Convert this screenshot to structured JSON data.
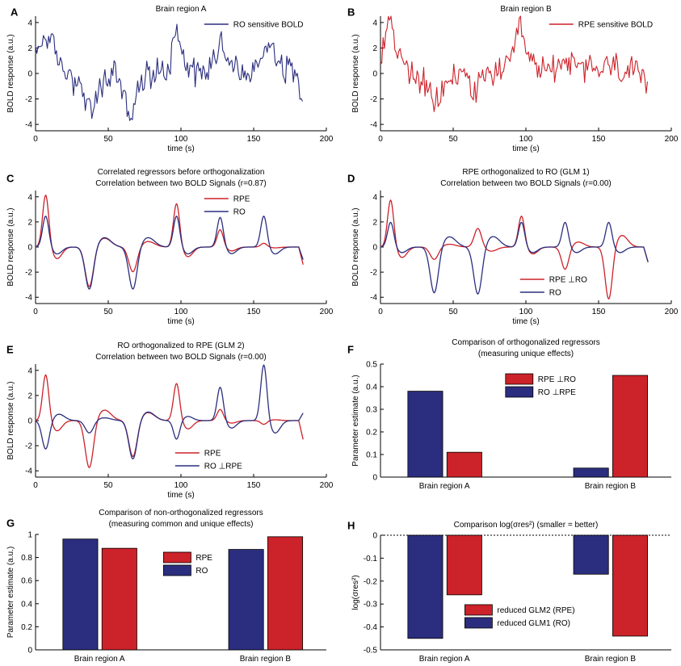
{
  "colors": {
    "ro": "#2b2e7e",
    "rpe": "#cc2229"
  },
  "chart_data": [
    {
      "panel": "A",
      "type": "line",
      "title_lines": [
        "Brain region A"
      ],
      "xlabel": "time (s)",
      "ylabel": "BOLD response (a.u.)",
      "xlim": [
        0,
        200
      ],
      "ylim": [
        -4.5,
        4.5
      ],
      "xticks": [
        0,
        50,
        100,
        150,
        200
      ],
      "yticks": [
        -4,
        -2,
        0,
        2,
        4
      ],
      "legend_position": "top-right",
      "series": [
        {
          "name": "RO sensitive BOLD",
          "color": "ro",
          "noisy": true,
          "x": [
            0,
            4,
            8,
            10,
            14,
            20,
            28,
            34,
            38,
            44,
            50,
            55,
            58,
            62,
            66,
            70,
            76,
            82,
            90,
            94,
            97,
            100,
            104,
            110,
            118,
            124,
            128,
            132,
            138,
            146,
            152,
            156,
            160,
            166,
            172,
            178,
            184
          ],
          "y": [
            1.3,
            2.5,
            3.2,
            2.4,
            1.5,
            0.2,
            -0.6,
            -1.8,
            -3.3,
            -1.3,
            -0.3,
            0.2,
            -0.6,
            -2.4,
            -3.4,
            -1.6,
            -0.2,
            0.1,
            0.3,
            1.6,
            4.3,
            2.2,
            0.8,
            0.2,
            0.1,
            1.6,
            2.8,
            1.2,
            0.3,
            -0.2,
            0.3,
            1.6,
            2.8,
            1.3,
            0.4,
            0.3,
            -1.3
          ]
        }
      ]
    },
    {
      "panel": "B",
      "type": "line",
      "title_lines": [
        "Brain region B"
      ],
      "xlabel": "time (s)",
      "ylabel": "BOLD response (a.u.)",
      "xlim": [
        0,
        200
      ],
      "ylim": [
        -4.5,
        4.5
      ],
      "xticks": [
        0,
        50,
        100,
        150,
        200
      ],
      "yticks": [
        -4,
        -2,
        0,
        2,
        4
      ],
      "legend_position": "top-right",
      "series": [
        {
          "name": "RPE sensitive BOLD",
          "color": "rpe",
          "noisy": true,
          "x": [
            0,
            4,
            7,
            10,
            14,
            20,
            28,
            34,
            37,
            42,
            50,
            58,
            62,
            66,
            70,
            78,
            86,
            92,
            95,
            98,
            102,
            108,
            116,
            124,
            128,
            132,
            140,
            150,
            158,
            166,
            174,
            184
          ],
          "y": [
            1.2,
            3.8,
            4.5,
            2.4,
            0.9,
            0.2,
            -0.5,
            -1.7,
            -2.8,
            -1.5,
            -0.2,
            0.1,
            -0.8,
            -1.6,
            -0.6,
            0.2,
            0.3,
            1.2,
            4.0,
            2.6,
            1.0,
            0.4,
            0.3,
            0.8,
            1.2,
            0.6,
            0.3,
            0.4,
            0.6,
            0.3,
            0.1,
            -1.2
          ]
        }
      ]
    },
    {
      "panel": "C",
      "type": "line",
      "title_lines": [
        "Correlated regressors before orthogonalization",
        "Correlation between two BOLD Signals  (r=0.87)"
      ],
      "xlabel": "time (s)",
      "ylabel": "BOLD response (a.u.)",
      "xlim": [
        0,
        200
      ],
      "ylim": [
        -4.5,
        4.5
      ],
      "xticks": [
        0,
        50,
        100,
        150,
        200
      ],
      "yticks": [
        -4,
        -2,
        0,
        2,
        4
      ],
      "legend_position": "top-right",
      "series": [
        {
          "name": "RPE",
          "color": "rpe",
          "events": [
            [
              7,
              4.2,
              3
            ],
            [
              37,
              -3.2,
              4
            ],
            [
              67,
              -2.0,
              4
            ],
            [
              97,
              3.5,
              3
            ],
            [
              127,
              1.4,
              3
            ],
            [
              157,
              0.3,
              3
            ]
          ],
          "end": -1.4
        },
        {
          "name": "RO",
          "color": "ro",
          "events": [
            [
              7,
              2.5,
              3
            ],
            [
              37,
              -3.4,
              4
            ],
            [
              67,
              -3.4,
              4
            ],
            [
              97,
              2.5,
              3
            ],
            [
              127,
              2.4,
              3
            ],
            [
              157,
              2.5,
              3
            ]
          ],
          "end": -1.0
        }
      ]
    },
    {
      "panel": "D",
      "type": "line",
      "title_lines": [
        "RPE orthogonalized to RO (GLM 1)",
        "Correlation between two BOLD Signals  (r=0.00)"
      ],
      "xlabel": "time (s)",
      "ylabel": "BOLD response (a.u.)",
      "xlim": [
        0,
        200
      ],
      "ylim": [
        -4.5,
        4.5
      ],
      "xticks": [
        0,
        50,
        100,
        150,
        200
      ],
      "yticks": [
        -4,
        -2,
        0,
        2,
        4
      ],
      "legend_position": "bottom-right",
      "series": [
        {
          "name": "RPE  ⊥RO",
          "color": "rpe",
          "events": [
            [
              7,
              3.8,
              3
            ],
            [
              37,
              -1.0,
              4
            ],
            [
              67,
              1.5,
              3.5
            ],
            [
              97,
              2.5,
              3
            ],
            [
              127,
              -1.8,
              3.5
            ],
            [
              157,
              -4.2,
              3.5
            ]
          ],
          "end": -1.2
        },
        {
          "name": "RO",
          "color": "ro",
          "events": [
            [
              7,
              2.0,
              3
            ],
            [
              37,
              -3.7,
              4
            ],
            [
              67,
              -3.8,
              4
            ],
            [
              97,
              2.0,
              3
            ],
            [
              127,
              2.0,
              3
            ],
            [
              157,
              2.0,
              3
            ]
          ],
          "end": -1.2
        }
      ]
    },
    {
      "panel": "E",
      "type": "line",
      "title_lines": [
        "RO orthogonalized to RPE (GLM 2)",
        "Correlation between two BOLD Signals  (r=0.00)"
      ],
      "xlabel": "time (s)",
      "ylabel": "BOLD response (a.u.)",
      "xlim": [
        0,
        200
      ],
      "ylim": [
        -4.5,
        4.5
      ],
      "xticks": [
        0,
        50,
        100,
        150,
        200
      ],
      "yticks": [
        -4,
        -2,
        0,
        2,
        4
      ],
      "legend_position": "bottom-right",
      "series": [
        {
          "name": "RPE",
          "color": "rpe",
          "events": [
            [
              7,
              3.7,
              3
            ],
            [
              37,
              -3.8,
              4
            ],
            [
              67,
              -2.9,
              4
            ],
            [
              97,
              3.0,
              3
            ],
            [
              127,
              0.9,
              3
            ],
            [
              157,
              -0.3,
              3
            ]
          ],
          "end": -1.5
        },
        {
          "name": "RO  ⊥RPE",
          "color": "ro",
          "events": [
            [
              7,
              -2.3,
              3.5
            ],
            [
              37,
              -1.0,
              4
            ],
            [
              67,
              -3.1,
              4
            ],
            [
              97,
              -1.5,
              3
            ],
            [
              127,
              2.7,
              3
            ],
            [
              157,
              4.5,
              3
            ]
          ],
          "end": 0.6
        }
      ]
    },
    {
      "panel": "F",
      "type": "bar",
      "title_lines": [
        "Comparison of orthogonalized regressors",
        "(measuring unique effects)"
      ],
      "xlabel": "",
      "ylabel": "Parameter estimate (a.u.)",
      "categories": [
        "Brain region A",
        "Brain region B"
      ],
      "ylim": [
        0,
        0.5
      ],
      "yticks": [
        0,
        0.1,
        0.2,
        0.3,
        0.4,
        0.5
      ],
      "legend_position": "top-right",
      "legend_order": [
        1,
        0
      ],
      "zero_line": false,
      "series": [
        {
          "name": "RO  ⊥RPE",
          "color": "ro",
          "values": [
            0.38,
            0.04
          ]
        },
        {
          "name": "RPE  ⊥RO",
          "color": "rpe",
          "values": [
            0.11,
            0.45
          ]
        }
      ]
    },
    {
      "panel": "G",
      "type": "bar",
      "title_lines": [
        "Comparison of non-orthogonalized regressors",
        "(measuring common and unique effects)"
      ],
      "xlabel": "",
      "ylabel": "Parameter estimate (a.u.)",
      "categories": [
        "Brain region A",
        "Brain region B"
      ],
      "ylim": [
        0,
        1
      ],
      "yticks": [
        0,
        0.2,
        0.4,
        0.6,
        0.8,
        1
      ],
      "legend_position": "center",
      "legend_order": [
        1,
        0
      ],
      "zero_line": false,
      "series": [
        {
          "name": "RO",
          "color": "ro",
          "values": [
            0.96,
            0.87
          ]
        },
        {
          "name": "RPE",
          "color": "rpe",
          "values": [
            0.88,
            0.98
          ]
        }
      ]
    },
    {
      "panel": "H",
      "type": "bar",
      "title_lines": [
        "Comparison log(σres²) (smaller = better)"
      ],
      "xlabel": "",
      "ylabel": "log(σres²)",
      "categories": [
        "Brain region A",
        "Brain region B"
      ],
      "ylim": [
        -0.5,
        0
      ],
      "yticks": [
        -0.5,
        -0.4,
        -0.3,
        -0.2,
        -0.1,
        0
      ],
      "legend_position": "bottom-center",
      "legend_order": [
        1,
        0
      ],
      "zero_line": true,
      "series": [
        {
          "name": "reduced GLM1 (RO)",
          "color": "ro",
          "values": [
            -0.45,
            -0.17
          ]
        },
        {
          "name": "reduced GLM2 (RPE)",
          "color": "rpe",
          "values": [
            -0.26,
            -0.44
          ]
        }
      ]
    }
  ]
}
